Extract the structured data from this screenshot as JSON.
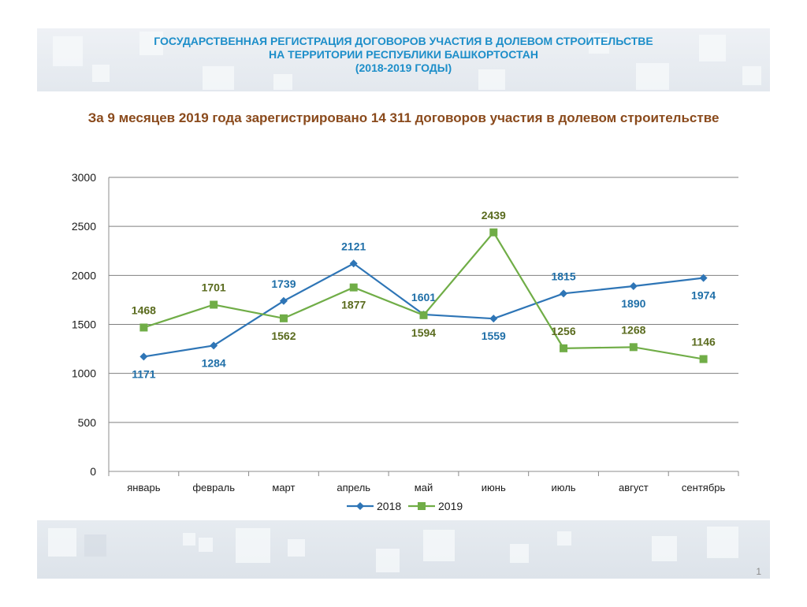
{
  "slide": {
    "title_lines": [
      "ГОСУДАРСТВЕННАЯ РЕГИСТРАЦИЯ ДОГОВОРОВ УЧАСТИЯ В ДОЛЕВОМ СТРОИТЕЛЬСТВЕ",
      "НА ТЕРРИТОРИИ РЕСПУБЛИКИ БАШКОРТОСТАН",
      "(2018-2019  ГОДЫ)"
    ],
    "subtitle": "За 9 месяцев 2019 года зарегистрировано 14 311 договоров  участия в долевом строительстве",
    "page_number": "1"
  },
  "colors": {
    "series_2018": "#2e75b6",
    "series_2019": "#70ad47",
    "label_2018": "#1f6fa8",
    "label_2019": "#5a6b1e",
    "title": "#1d8ec9",
    "subtitle": "#8a4a1c"
  },
  "chart_data": {
    "type": "line",
    "categories": [
      "январь",
      "февраль",
      "март",
      "апрель",
      "май",
      "июнь",
      "июль",
      "август",
      "сентябрь"
    ],
    "series": [
      {
        "name": "2018",
        "values": [
          1171,
          1284,
          1739,
          2121,
          1601,
          1559,
          1815,
          1890,
          1974
        ],
        "marker": "diamond"
      },
      {
        "name": "2019",
        "values": [
          1468,
          1701,
          1562,
          1877,
          1594,
          2439,
          1256,
          1268,
          1146
        ],
        "marker": "square"
      }
    ],
    "yticks": [
      0,
      500,
      1000,
      1500,
      2000,
      2500,
      3000
    ],
    "ylim": [
      0,
      3000
    ],
    "grid": true,
    "legend": "bottom",
    "data_labels": true
  }
}
